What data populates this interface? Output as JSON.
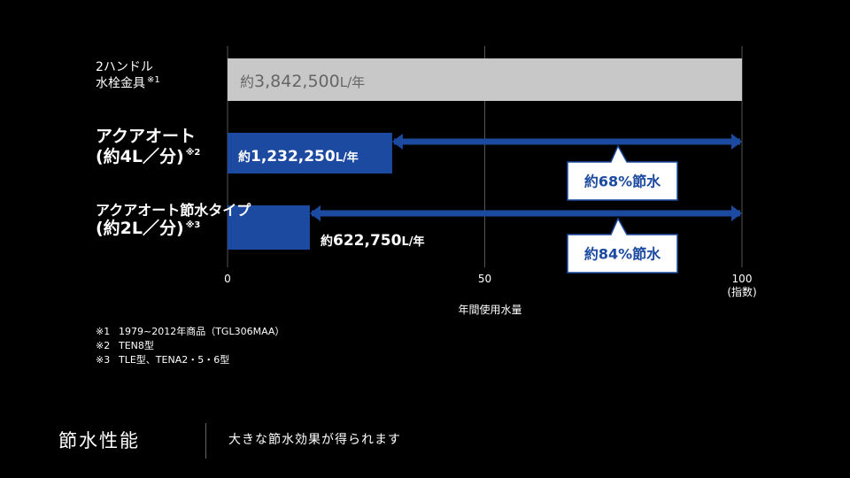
{
  "chart_data": {
    "type": "bar",
    "orientation": "horizontal",
    "xlabel": "年間使用水量",
    "xlim": [
      0,
      100
    ],
    "x_ticks": [
      "0",
      "50",
      "100"
    ],
    "x_unit_label": "(指数)",
    "grid": true,
    "categories": [
      {
        "lines": [
          "2ハンドル",
          "水栓金具"
        ],
        "note": "※1"
      },
      {
        "lines": [
          "アクアオート",
          "(約4L／分)"
        ],
        "note": "※2"
      },
      {
        "lines": [
          "アクアオート節水タイプ",
          "(約2L／分)"
        ],
        "note": "※3"
      }
    ],
    "values": [
      100,
      32,
      16
    ],
    "value_labels": [
      {
        "prefix": "約",
        "number": "3,842,500",
        "unit": "L/年"
      },
      {
        "prefix": "約",
        "number": "1,232,250",
        "unit": "L/年"
      },
      {
        "prefix": "約",
        "number": "622,750",
        "unit": "L/年"
      }
    ],
    "savings": [
      {
        "text": "約68%節水"
      },
      {
        "text": "約84%節水"
      }
    ],
    "colors": {
      "reference_bar": "#c8c8c8",
      "bar": "#1c4aa0",
      "callout_text": "#1c4aa0",
      "callout_border": "#1c4aa0"
    }
  },
  "footnotes": [
    {
      "mark": "※1",
      "text": "1979~2012年商品（TGL306MAA）"
    },
    {
      "mark": "※2",
      "text": "TEN8型"
    },
    {
      "mark": "※3",
      "text": "TLE型、TENA2・5・6型"
    }
  ],
  "footer": {
    "title": "節水性能",
    "subtitle": "大きな節水効果が得られます"
  }
}
